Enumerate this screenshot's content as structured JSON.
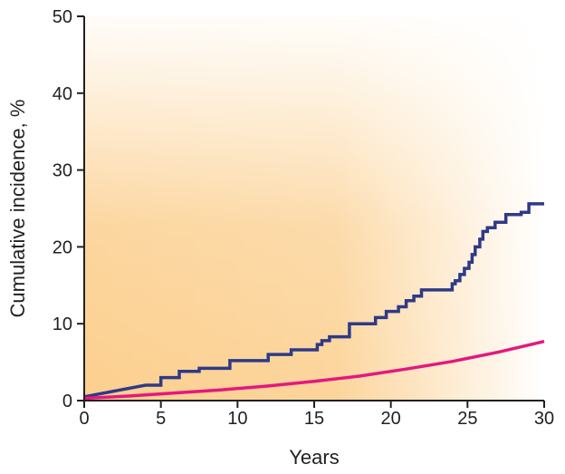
{
  "chart_data": {
    "type": "line",
    "title": "",
    "xlabel": "Years",
    "ylabel": "Cumulative incidence, %",
    "xlim": [
      0,
      30
    ],
    "ylim": [
      0,
      50
    ],
    "x_ticks": [
      0,
      5,
      10,
      15,
      20,
      25,
      30
    ],
    "y_ticks": [
      0,
      10,
      20,
      30,
      40,
      50
    ],
    "x_tick_labels": [
      "0",
      "5",
      "10",
      "15",
      "20",
      "25",
      "30"
    ],
    "y_tick_labels": [
      "0",
      "10",
      "20",
      "30",
      "40",
      "50"
    ],
    "grid": false,
    "background": "orange shading, strongest at lower left, fading toward upper right",
    "series": [
      {
        "style": "step",
        "color": "#2e3a87",
        "x": [
          0,
          4,
          5,
          6,
          6.2,
          7.5,
          9.5,
          12,
          13.5,
          15,
          15.2,
          15.5,
          16,
          17,
          17.3,
          18,
          19,
          19.7,
          20.5,
          21,
          21.5,
          22,
          23,
          24,
          24.2,
          24.5,
          24.8,
          25.1,
          25.3,
          25.5,
          25.8,
          26,
          26.3,
          26.5,
          26.8,
          27.2,
          27.5,
          28,
          28.5,
          29,
          30
        ],
        "y": [
          0.5,
          2,
          3,
          3,
          3.8,
          4.2,
          5.2,
          6,
          6.6,
          6.6,
          7.3,
          7.8,
          8.3,
          8.3,
          10,
          10,
          10.8,
          11.6,
          12.2,
          13,
          13.6,
          14.4,
          14.4,
          15.2,
          15.6,
          16.4,
          17.2,
          18,
          19,
          20,
          21,
          22,
          22.5,
          22.5,
          23.2,
          23.2,
          24.2,
          24.2,
          24.5,
          25.6,
          25.6
        ]
      },
      {
        "style": "smooth",
        "color": "#e4187f",
        "x": [
          0,
          3,
          6,
          9,
          12,
          15,
          18,
          21,
          24,
          27,
          30
        ],
        "y": [
          0.3,
          0.6,
          1.0,
          1.4,
          1.9,
          2.5,
          3.2,
          4.1,
          5.1,
          6.3,
          7.7
        ]
      }
    ]
  }
}
